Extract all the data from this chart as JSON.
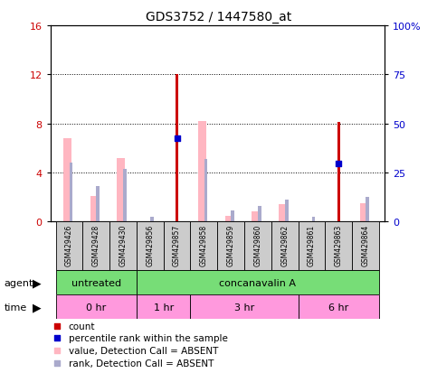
{
  "title": "GDS3752 / 1447580_at",
  "samples": [
    "GSM429426",
    "GSM429428",
    "GSM429430",
    "GSM429856",
    "GSM429857",
    "GSM429858",
    "GSM429859",
    "GSM429860",
    "GSM429862",
    "GSM429861",
    "GSM429863",
    "GSM429864"
  ],
  "count_values": [
    0,
    0,
    0,
    0,
    12.0,
    0,
    0,
    0,
    0,
    0,
    8.1,
    0
  ],
  "percentile_values": [
    0,
    0,
    0,
    0,
    6.8,
    0,
    0,
    0,
    0,
    0,
    4.7,
    0
  ],
  "absent_value_values": [
    6.8,
    2.1,
    5.2,
    0,
    0,
    8.2,
    0.5,
    0.8,
    1.4,
    0,
    0,
    1.5
  ],
  "absent_rank_values": [
    4.8,
    2.9,
    4.3,
    0.4,
    0,
    5.1,
    0.9,
    1.3,
    1.8,
    0.4,
    0,
    2.0
  ],
  "left_ylim": [
    0,
    16
  ],
  "left_yticks": [
    0,
    4,
    8,
    12,
    16
  ],
  "right_ylim": [
    0,
    100
  ],
  "right_yticks": [
    0,
    25,
    50,
    75,
    100
  ],
  "right_yticklabels": [
    "0",
    "25",
    "50",
    "75",
    "100%"
  ],
  "color_count": "#CC0000",
  "color_percentile": "#0000CC",
  "color_absent_value": "#FFB6C1",
  "color_absent_rank": "#AAAACC",
  "bg_color": "#FFFFFF",
  "grid_color": "#000000",
  "sample_bg_color": "#CCCCCC",
  "agent_groups": [
    {
      "label": "untreated",
      "start": 0,
      "end": 3
    },
    {
      "label": "concanavalin A",
      "start": 3,
      "end": 12
    }
  ],
  "time_groups": [
    {
      "label": "0 hr",
      "start": 0,
      "end": 3
    },
    {
      "label": "1 hr",
      "start": 3,
      "end": 5
    },
    {
      "label": "3 hr",
      "start": 5,
      "end": 9
    },
    {
      "label": "6 hr",
      "start": 9,
      "end": 12
    }
  ],
  "green_color": "#77DD77",
  "pink_color": "#FF99DD"
}
